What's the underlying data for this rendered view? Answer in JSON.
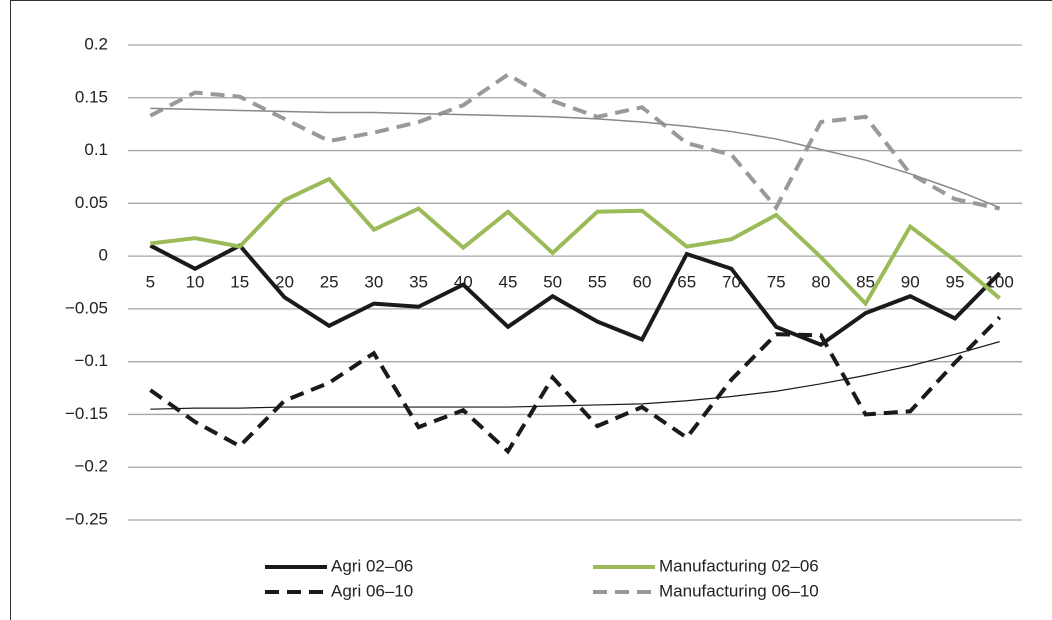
{
  "chart_data": {
    "type": "line",
    "categories": [
      5,
      10,
      15,
      20,
      25,
      30,
      35,
      40,
      45,
      50,
      55,
      60,
      65,
      70,
      75,
      80,
      85,
      90,
      95,
      100
    ],
    "series": [
      {
        "name": "Agri 02–06",
        "color": "#1a1a1a",
        "dash": false,
        "width": 4,
        "values": [
          0.01,
          -0.012,
          0.01,
          -0.039,
          -0.066,
          -0.045,
          -0.048,
          -0.027,
          -0.067,
          -0.038,
          -0.062,
          -0.079,
          0.002,
          -0.012,
          -0.067,
          -0.084,
          -0.054,
          -0.038,
          -0.059,
          -0.016
        ]
      },
      {
        "name": "Manufacturing 02–06",
        "color": "#9bbb59",
        "dash": false,
        "width": 4,
        "values": [
          0.012,
          0.017,
          0.009,
          0.053,
          0.073,
          0.025,
          0.045,
          0.008,
          0.042,
          0.003,
          0.042,
          0.043,
          0.009,
          0.016,
          0.039,
          -0.001,
          -0.045,
          0.028,
          -0.004,
          -0.04
        ]
      },
      {
        "name": "Agri 06–10",
        "color": "#1a1a1a",
        "dash": true,
        "width": 4,
        "values": [
          -0.127,
          -0.157,
          -0.18,
          -0.137,
          -0.12,
          -0.092,
          -0.162,
          -0.146,
          -0.185,
          -0.115,
          -0.161,
          -0.143,
          -0.172,
          -0.117,
          -0.074,
          -0.075,
          -0.15,
          -0.147,
          -0.101,
          -0.058
        ]
      },
      {
        "name": "Manufacturing 06–10",
        "color": "#999999",
        "dash": true,
        "width": 4,
        "values": [
          0.133,
          0.155,
          0.151,
          0.13,
          0.109,
          0.117,
          0.127,
          0.143,
          0.172,
          0.147,
          0.132,
          0.141,
          0.107,
          0.096,
          0.046,
          0.127,
          0.132,
          0.078,
          0.054,
          0.045
        ]
      },
      {
        "color": "#888888",
        "dash": false,
        "width": 1.5,
        "values": [
          0.14,
          0.139,
          0.138,
          0.137,
          0.136,
          0.136,
          0.135,
          0.134,
          0.133,
          0.132,
          0.13,
          0.127,
          0.123,
          0.118,
          0.111,
          0.101,
          0.091,
          0.078,
          0.063,
          0.046
        ]
      },
      {
        "color": "#1a1a1a",
        "dash": false,
        "width": 1.2,
        "values": [
          -0.145,
          -0.144,
          -0.144,
          -0.143,
          -0.143,
          -0.143,
          -0.143,
          -0.143,
          -0.143,
          -0.142,
          -0.141,
          -0.14,
          -0.137,
          -0.133,
          -0.128,
          -0.121,
          -0.113,
          -0.104,
          -0.093,
          -0.081
        ]
      }
    ],
    "ylim": [
      -0.25,
      0.2
    ],
    "yticks": [
      0.2,
      0.15,
      0.1,
      0.05,
      0,
      {
        "value": -0.05,
        "label": "−0.05"
      },
      {
        "value": -0.1,
        "label": "−0.1"
      },
      {
        "value": -0.15,
        "label": "−0.15"
      },
      {
        "value": -0.2,
        "label": "−0.2"
      },
      {
        "value": -0.25,
        "label": "−0.25"
      }
    ],
    "grid": true,
    "legend": "bottom"
  }
}
